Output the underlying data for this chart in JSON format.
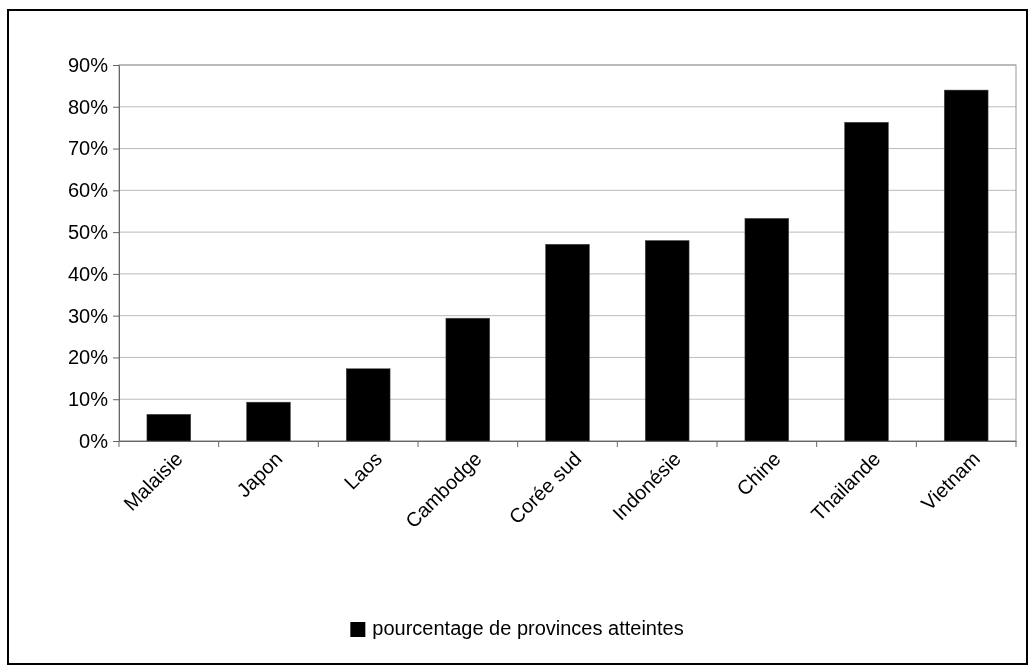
{
  "chart_data": {
    "type": "bar",
    "categories": [
      "Malaisie",
      "Japon",
      "Laos",
      "Cambodge",
      "Corée sud",
      "Indonésie",
      "Chine",
      "Thailande",
      "Vietnam"
    ],
    "series": [
      {
        "name": "pourcentage de provinces atteintes",
        "color": "#000000",
        "values": [
          6.4,
          9.3,
          17.3,
          29.4,
          47.1,
          48.0,
          53.3,
          76.3,
          84.0
        ]
      }
    ],
    "ylim": [
      0,
      90
    ],
    "yticks": [
      {
        "value": 0,
        "label": "0%"
      },
      {
        "value": 10,
        "label": "10%"
      },
      {
        "value": 20,
        "label": "20%"
      },
      {
        "value": 30,
        "label": "30%"
      },
      {
        "value": 40,
        "label": "40%"
      },
      {
        "value": 50,
        "label": "50%"
      },
      {
        "value": 60,
        "label": "60%"
      },
      {
        "value": 70,
        "label": "70%"
      },
      {
        "value": 80,
        "label": "80%"
      },
      {
        "value": 90,
        "label": "90%"
      }
    ],
    "grid": "y",
    "legend": "bottom"
  }
}
